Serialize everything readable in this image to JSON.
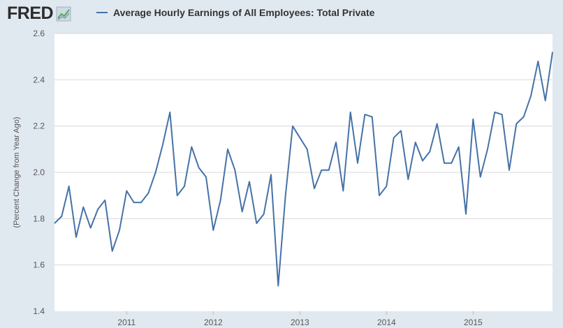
{
  "header": {
    "logo_text": "FRED",
    "legend_label": "Average Hourly Earnings of All Employees: Total Private"
  },
  "colors": {
    "series": "#4572a7",
    "grid": "#d8d8d8",
    "plot_bg": "#ffffff",
    "page_bg": "#e1e9f0"
  },
  "chart_data": {
    "type": "line",
    "title": "",
    "ylabel": "(Percent Change from Year Ago)",
    "xlabel": "",
    "ylim": [
      1.4,
      2.6
    ],
    "y_ticks": [
      "1.4",
      "1.6",
      "1.8",
      "2.0",
      "2.2",
      "2.4",
      "2.6"
    ],
    "x_ticks": [
      "2011",
      "2012",
      "2013",
      "2014",
      "2015"
    ],
    "x_tick_years": [
      2011,
      2012,
      2013,
      2014,
      2015
    ],
    "x_start": "2010-03",
    "x_end": "2015-12",
    "grid": true,
    "legend_position": "top",
    "series": [
      {
        "name": "Average Hourly Earnings of All Employees: Total Private",
        "x": [
          "2010-03",
          "2010-04",
          "2010-05",
          "2010-06",
          "2010-07",
          "2010-08",
          "2010-09",
          "2010-10",
          "2010-11",
          "2010-12",
          "2011-01",
          "2011-02",
          "2011-03",
          "2011-04",
          "2011-05",
          "2011-06",
          "2011-07",
          "2011-08",
          "2011-09",
          "2011-10",
          "2011-11",
          "2011-12",
          "2012-01",
          "2012-02",
          "2012-03",
          "2012-04",
          "2012-05",
          "2012-06",
          "2012-07",
          "2012-08",
          "2012-09",
          "2012-10",
          "2012-11",
          "2012-12",
          "2013-01",
          "2013-02",
          "2013-03",
          "2013-04",
          "2013-05",
          "2013-06",
          "2013-07",
          "2013-08",
          "2013-09",
          "2013-10",
          "2013-11",
          "2013-12",
          "2014-01",
          "2014-02",
          "2014-03",
          "2014-04",
          "2014-05",
          "2014-06",
          "2014-07",
          "2014-08",
          "2014-09",
          "2014-10",
          "2014-11",
          "2014-12",
          "2015-01",
          "2015-02",
          "2015-03",
          "2015-04",
          "2015-05",
          "2015-06",
          "2015-07",
          "2015-08",
          "2015-09",
          "2015-10",
          "2015-11",
          "2015-12"
        ],
        "values": [
          1.78,
          1.81,
          1.94,
          1.72,
          1.85,
          1.76,
          1.84,
          1.88,
          1.66,
          1.75,
          1.92,
          1.87,
          1.87,
          1.91,
          2.0,
          2.12,
          2.26,
          1.9,
          1.94,
          2.11,
          2.02,
          1.98,
          1.75,
          1.88,
          2.1,
          2.01,
          1.83,
          1.96,
          1.78,
          1.82,
          1.99,
          1.51,
          1.9,
          2.2,
          2.15,
          2.1,
          1.93,
          2.01,
          2.01,
          2.13,
          1.92,
          2.26,
          2.04,
          2.25,
          2.24,
          1.9,
          1.94,
          2.15,
          2.18,
          1.97,
          2.13,
          2.05,
          2.09,
          2.21,
          2.04,
          2.04,
          2.11,
          1.82,
          2.23,
          1.98,
          2.1,
          2.26,
          2.25,
          2.01,
          2.21,
          2.24,
          2.33,
          2.48,
          2.31,
          2.52
        ]
      }
    ]
  }
}
